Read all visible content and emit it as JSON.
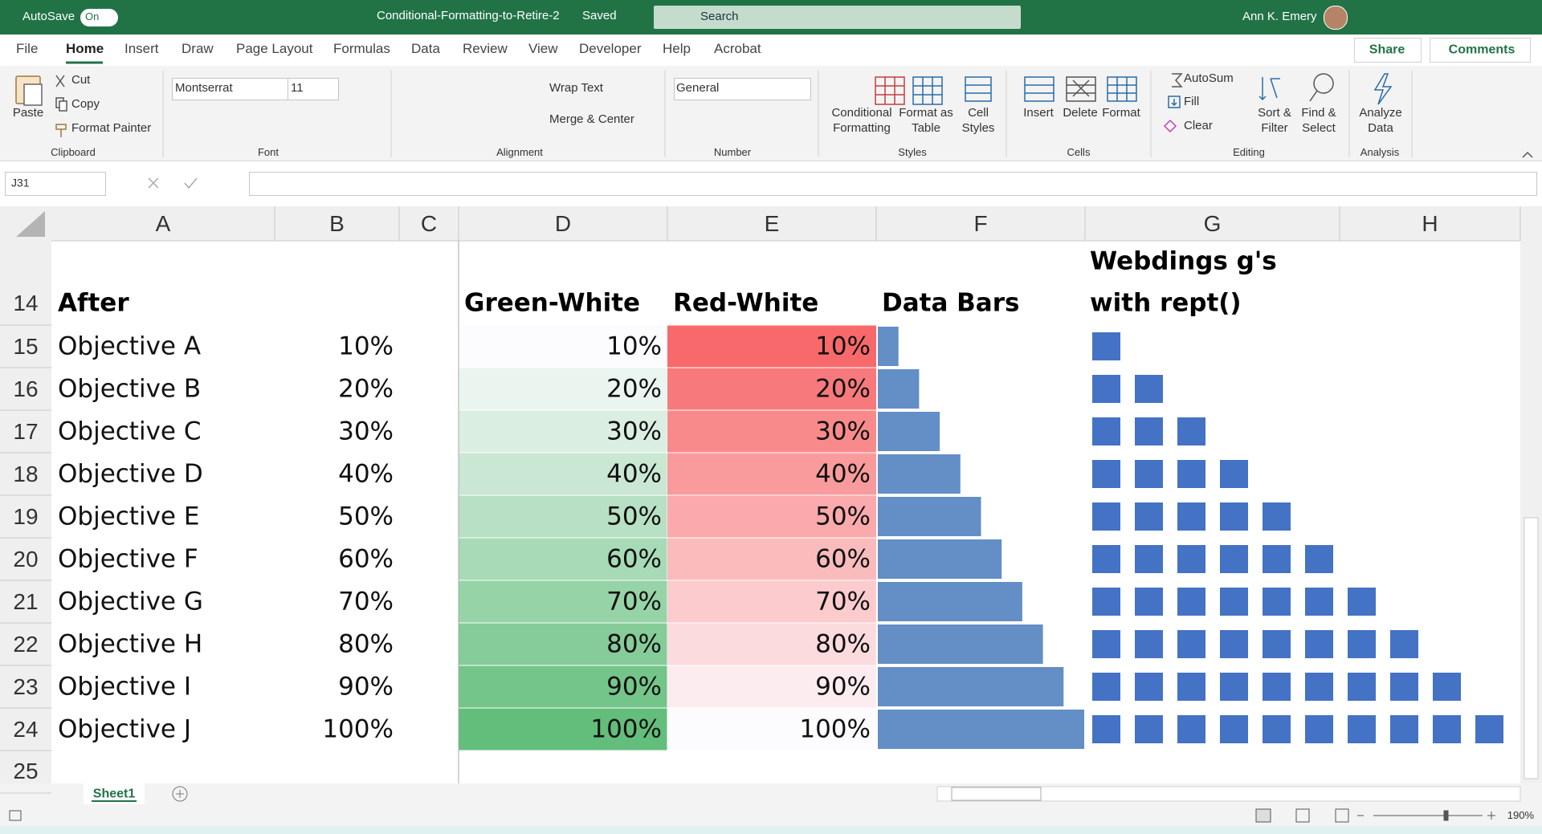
{
  "title_bar": {
    "autosave": "AutoSave",
    "toggle": "On",
    "file_name": "Conditional-Formatting-to-Retire-2",
    "save_status": "Saved",
    "search": "Search",
    "user": "Ann K. Emery"
  },
  "menu": {
    "tabs": [
      "File",
      "Home",
      "Insert",
      "Draw",
      "Page Layout",
      "Formulas",
      "Data",
      "Review",
      "View",
      "Developer",
      "Help",
      "Acrobat"
    ],
    "share": "Share",
    "comments": "Comments"
  },
  "ribbon": {
    "clipboard": {
      "paste": "Paste",
      "cut": "Cut",
      "copy": "Copy",
      "format_painter": "Format Painter",
      "label": "Clipboard"
    },
    "font": {
      "name": "Montserrat",
      "size": "11",
      "label": "Font"
    },
    "alignment": {
      "wrap_text": "Wrap Text",
      "merge": "Merge & Center",
      "label": "Alignment"
    },
    "number": {
      "format": "General",
      "label": "Number"
    },
    "styles": {
      "conditional": [
        "Conditional",
        "Formatting"
      ],
      "format_table": [
        "Format as",
        "Table"
      ],
      "cell_styles": [
        "Cell",
        "Styles"
      ],
      "label": "Styles"
    },
    "cells": {
      "insert": "Insert",
      "delete": "Delete",
      "format": "Format",
      "label": "Cells"
    },
    "editing": {
      "autosum": "AutoSum",
      "fill": "Fill",
      "clear": "Clear",
      "sort": [
        "Sort &",
        "Filter"
      ],
      "find": [
        "Find &",
        "Select"
      ],
      "label": "Editing"
    },
    "analysis": {
      "analyze": [
        "Analyze",
        "Data"
      ],
      "label": "Analysis"
    }
  },
  "formula_bar": {
    "name_box": "J31"
  },
  "sheet": {
    "columns": [
      "A",
      "B",
      "C",
      "D",
      "E",
      "F",
      "G",
      "H"
    ],
    "row_numbers": [
      "14",
      "15",
      "16",
      "17",
      "18",
      "19",
      "20",
      "21",
      "22",
      "23",
      "24",
      "25"
    ],
    "headers": {
      "a": "After",
      "d": "Green-White",
      "e": "Red-White",
      "f": "Data Bars",
      "g": [
        "Webdings g's",
        "with rept()"
      ]
    },
    "rows": [
      {
        "label": "Objective A",
        "b": "10%",
        "d": "10%",
        "e": "10%",
        "g": "g"
      },
      {
        "label": "Objective B",
        "b": "20%",
        "d": "20%",
        "e": "20%",
        "g": "gg"
      },
      {
        "label": "Objective C",
        "b": "30%",
        "d": "30%",
        "e": "30%",
        "g": "ggg"
      },
      {
        "label": "Objective D",
        "b": "40%",
        "d": "40%",
        "e": "40%",
        "g": "gggg"
      },
      {
        "label": "Objective E",
        "b": "50%",
        "d": "50%",
        "e": "50%",
        "g": "ggggg"
      },
      {
        "label": "Objective F",
        "b": "60%",
        "d": "60%",
        "e": "60%",
        "g": "gggggg"
      },
      {
        "label": "Objective G",
        "b": "70%",
        "d": "70%",
        "e": "70%",
        "g": "ggggggg"
      },
      {
        "label": "Objective H",
        "b": "80%",
        "d": "80%",
        "e": "80%",
        "g": "gggggggg"
      },
      {
        "label": "Objective I",
        "b": "90%",
        "d": "90%",
        "e": "90%",
        "g": "ggggggggg"
      },
      {
        "label": "Objective J",
        "b": "100%",
        "d": "100%",
        "e": "100%",
        "g": "gggggggggg"
      }
    ]
  },
  "sheet_tab": "Sheet1",
  "status_bar": {
    "zoom": "190%"
  }
}
